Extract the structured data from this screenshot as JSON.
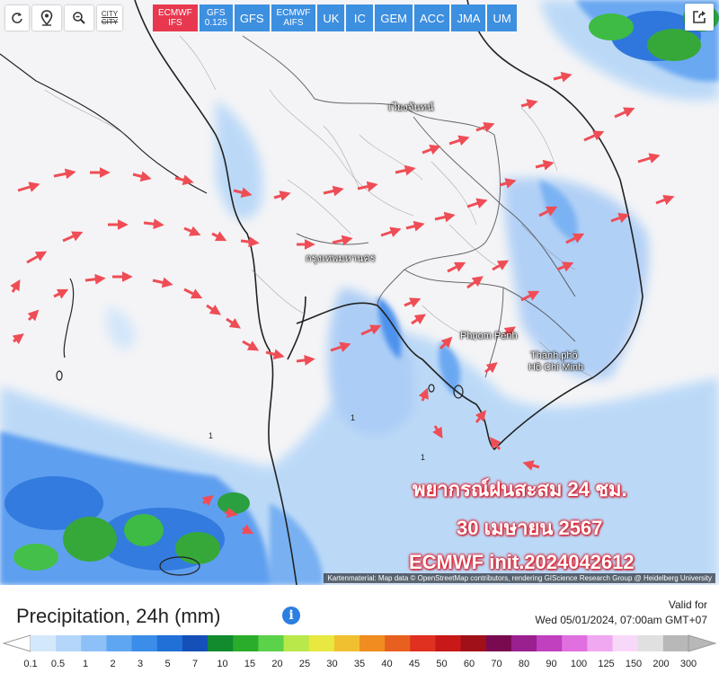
{
  "toolbar": {
    "refresh_icon": "refresh-icon",
    "location_icon": "location-pin-icon",
    "zoom_icon": "zoom-out-icon",
    "city_label": "CITY",
    "city_strike_label": "CITY",
    "share_icon": "share-icon",
    "models": [
      {
        "l1": "ECMWF",
        "l2": "IFS",
        "active": true
      },
      {
        "l1": "GFS",
        "l2": "0.125",
        "active": false
      },
      {
        "l1": "GFS",
        "l2": "",
        "active": false
      },
      {
        "l1": "ECMWF",
        "l2": "AIFS",
        "active": false
      },
      {
        "l1": "UK",
        "l2": "",
        "active": false
      },
      {
        "l1": "IC",
        "l2": "",
        "active": false
      },
      {
        "l1": "GEM",
        "l2": "",
        "active": false
      },
      {
        "l1": "ACC",
        "l2": "",
        "active": false
      },
      {
        "l1": "JMA",
        "l2": "",
        "active": false
      },
      {
        "l1": "UM",
        "l2": "",
        "active": false
      }
    ]
  },
  "map": {
    "cities": {
      "vientiane": "เวียงจันทน์",
      "bangkok": "กรุงเทพมหานคร",
      "phnom_penh": "Phnom Penh",
      "hcm_line1": "Thành phố",
      "hcm_line2": "Hồ Chí Minh"
    },
    "overlay": {
      "line1": "พยากรณ์ฝนสะสม 24 ชม.",
      "line2": "30 เมษายน 2567",
      "line3": "ECMWF init.2024042612"
    },
    "attribution": "Kartenmaterial: Map data © OpenStreetMap contributors, rendering GIScience Research Group @ Heidelberg University",
    "contour_label": "1"
  },
  "legend": {
    "title": "Precipitation, 24h (mm)",
    "info_icon": "info-icon",
    "valid_for_label": "Valid for",
    "valid_time": "Wed 05/01/2024, 07:00am GMT+07",
    "ticks": [
      "0.1",
      "0.5",
      "1",
      "2",
      "3",
      "5",
      "7",
      "10",
      "15",
      "20",
      "25",
      "30",
      "35",
      "40",
      "45",
      "50",
      "60",
      "70",
      "80",
      "90",
      "100",
      "125",
      "150",
      "200",
      "300"
    ],
    "colors": [
      "#d4e8fb",
      "#b3d6fa",
      "#8cc0f7",
      "#5fa6f1",
      "#3a8de8",
      "#2170d8",
      "#1450b8",
      "#128a2e",
      "#2aad2a",
      "#5cd14a",
      "#b8e84a",
      "#e8e840",
      "#f0c030",
      "#f08c20",
      "#e86020",
      "#e03020",
      "#c81818",
      "#a01018",
      "#7a0a50",
      "#9a2090",
      "#c040c0",
      "#e070e0",
      "#f0a8f0",
      "#f8d8f8",
      "#e0e0e0",
      "#b8b8b8"
    ]
  }
}
